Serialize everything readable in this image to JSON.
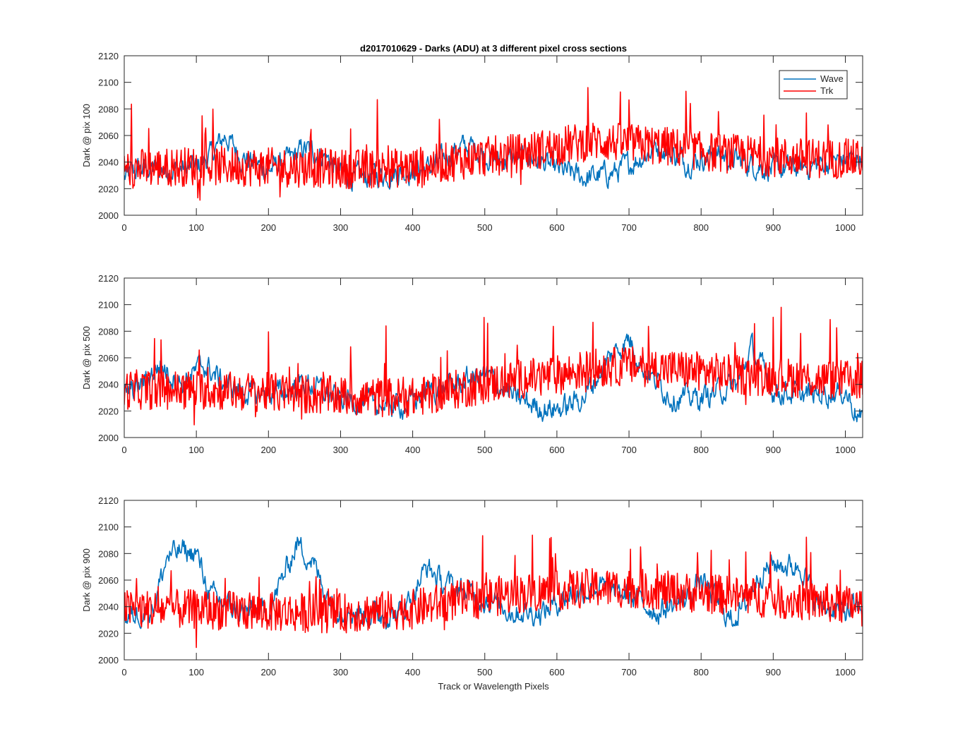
{
  "figure": {
    "title": "d2017010629 - Darks (ADU) at 3 different pixel cross sections",
    "xlabel": "Track or Wavelength Pixels"
  },
  "legend": {
    "placement": "top-right",
    "entries": [
      {
        "label": "Wave",
        "color": "#0072BD"
      },
      {
        "label": "Trk",
        "color": "#FF0000"
      }
    ]
  },
  "chart_data": [
    {
      "type": "line",
      "ylabel": "Dark @ pix 100",
      "xlim": [
        0,
        1024
      ],
      "ylim": [
        2000,
        2120
      ],
      "xticks": [
        0,
        100,
        200,
        300,
        400,
        500,
        600,
        700,
        800,
        900,
        1000
      ],
      "yticks": [
        2000,
        2020,
        2040,
        2060,
        2080,
        2100,
        2120
      ],
      "series": [
        {
          "name": "Wave",
          "color": "#0072BD",
          "x": [
            0,
            20,
            50,
            100,
            120,
            140,
            160,
            200,
            230,
            250,
            280,
            300,
            320,
            350,
            400,
            430,
            460,
            480,
            520,
            560,
            600,
            640,
            680,
            700,
            740,
            780,
            820,
            860,
            900,
            940,
            980,
            1024
          ],
          "y": [
            2028,
            2035,
            2034,
            2036,
            2045,
            2060,
            2045,
            2034,
            2042,
            2050,
            2044,
            2032,
            2028,
            2030,
            2034,
            2036,
            2050,
            2052,
            2040,
            2045,
            2034,
            2028,
            2032,
            2038,
            2052,
            2040,
            2046,
            2040,
            2034,
            2036,
            2040,
            2044
          ]
        },
        {
          "name": "Trk",
          "color": "#FF0000",
          "x": [
            0,
            50,
            100,
            150,
            200,
            250,
            300,
            350,
            400,
            450,
            500,
            550,
            600,
            650,
            700,
            750,
            800,
            850,
            900,
            950,
            1024
          ],
          "y": [
            2035,
            2036,
            2037,
            2037,
            2036,
            2036,
            2035,
            2035,
            2036,
            2040,
            2044,
            2047,
            2052,
            2056,
            2054,
            2052,
            2048,
            2046,
            2044,
            2043,
            2042
          ]
        }
      ]
    },
    {
      "type": "line",
      "ylabel": "Dark @ pix 500",
      "xlim": [
        0,
        1024
      ],
      "ylim": [
        2000,
        2120
      ],
      "xticks": [
        0,
        100,
        200,
        300,
        400,
        500,
        600,
        700,
        800,
        900,
        1000
      ],
      "yticks": [
        2000,
        2020,
        2040,
        2060,
        2080,
        2100,
        2120
      ],
      "series": [
        {
          "name": "Wave",
          "color": "#0072BD",
          "x": [
            0,
            20,
            50,
            80,
            110,
            140,
            180,
            220,
            250,
            290,
            340,
            390,
            420,
            460,
            500,
            540,
            580,
            610,
            640,
            670,
            700,
            720,
            760,
            800,
            850,
            870,
            900,
            950,
            1000,
            1024
          ],
          "y": [
            2032,
            2038,
            2055,
            2040,
            2055,
            2040,
            2032,
            2034,
            2042,
            2030,
            2026,
            2024,
            2035,
            2040,
            2048,
            2030,
            2022,
            2022,
            2032,
            2058,
            2075,
            2052,
            2030,
            2030,
            2040,
            2068,
            2035,
            2032,
            2035,
            2010
          ]
        },
        {
          "name": "Trk",
          "color": "#FF0000",
          "x": [
            0,
            100,
            200,
            300,
            400,
            450,
            500,
            550,
            600,
            650,
            700,
            750,
            800,
            850,
            900,
            950,
            1024
          ],
          "y": [
            2036,
            2036,
            2034,
            2031,
            2030,
            2035,
            2040,
            2044,
            2047,
            2052,
            2054,
            2052,
            2050,
            2047,
            2046,
            2044,
            2043
          ]
        }
      ]
    },
    {
      "type": "line",
      "ylabel": "Dark @ pix 900",
      "xlim": [
        0,
        1024
      ],
      "ylim": [
        2000,
        2120
      ],
      "xticks": [
        0,
        100,
        200,
        300,
        400,
        500,
        600,
        700,
        800,
        900,
        1000
      ],
      "yticks": [
        2000,
        2020,
        2040,
        2060,
        2080,
        2100,
        2120
      ],
      "series": [
        {
          "name": "Wave",
          "color": "#0072BD",
          "x": [
            0,
            40,
            60,
            80,
            100,
            120,
            160,
            200,
            220,
            240,
            260,
            280,
            300,
            340,
            380,
            400,
            420,
            440,
            460,
            500,
            540,
            580,
            620,
            660,
            700,
            740,
            780,
            800,
            820,
            840,
            860,
            880,
            900,
            940,
            960,
            1000,
            1024
          ],
          "y": [
            2030,
            2040,
            2078,
            2082,
            2080,
            2048,
            2036,
            2036,
            2062,
            2088,
            2075,
            2050,
            2038,
            2034,
            2034,
            2050,
            2070,
            2058,
            2054,
            2046,
            2036,
            2036,
            2050,
            2055,
            2048,
            2036,
            2046,
            2060,
            2046,
            2030,
            2040,
            2065,
            2072,
            2070,
            2042,
            2036,
            2040
          ]
        },
        {
          "name": "Trk",
          "color": "#FF0000",
          "x": [
            0,
            100,
            200,
            300,
            400,
            450,
            500,
            550,
            600,
            650,
            700,
            750,
            800,
            850,
            900,
            950,
            1024
          ],
          "y": [
            2038,
            2038,
            2036,
            2035,
            2038,
            2044,
            2047,
            2050,
            2052,
            2054,
            2054,
            2052,
            2050,
            2048,
            2046,
            2044,
            2040
          ]
        }
      ]
    }
  ]
}
